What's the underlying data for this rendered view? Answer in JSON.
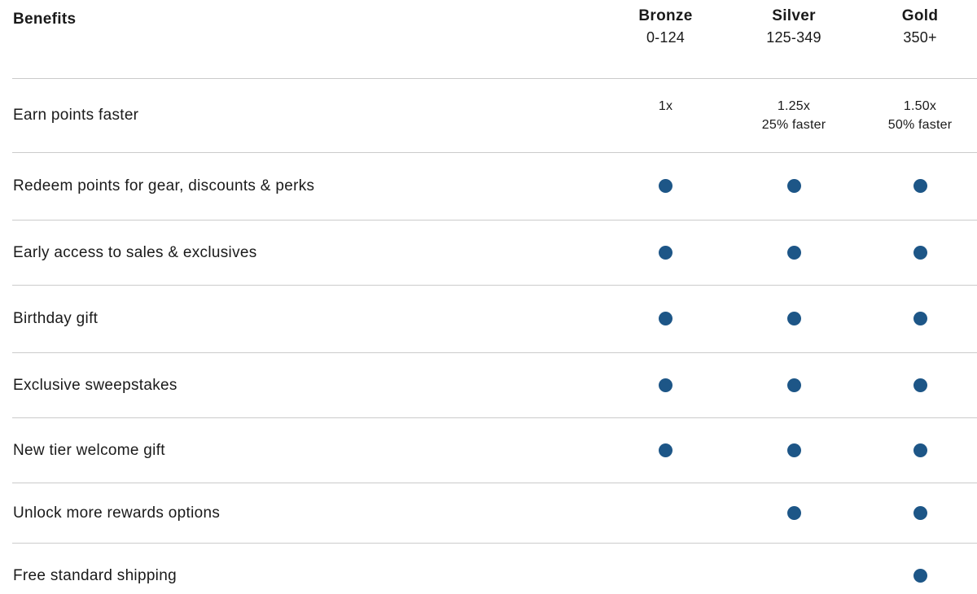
{
  "colors": {
    "accent": "#1d5687",
    "divider": "#cbcbcb",
    "text": "#1a1a1a"
  },
  "header": {
    "benefits_label": "Benefits",
    "tiers": [
      {
        "name": "Bronze",
        "range": "0-124"
      },
      {
        "name": "Silver",
        "range": "125-349"
      },
      {
        "name": "Gold",
        "range": "350+"
      }
    ]
  },
  "rows": [
    {
      "label": "Earn points faster",
      "cells": [
        {
          "main": "1x",
          "sub": ""
        },
        {
          "main": "1.25x",
          "sub": "25% faster"
        },
        {
          "main": "1.50x",
          "sub": "50% faster"
        }
      ]
    },
    {
      "label": "Redeem points for gear, discounts & perks",
      "cells": [
        "dot",
        "dot",
        "dot"
      ]
    },
    {
      "label": "Early access to sales & exclusives",
      "cells": [
        "dot",
        "dot",
        "dot"
      ]
    },
    {
      "label": "Birthday gift",
      "cells": [
        "dot",
        "dot",
        "dot"
      ]
    },
    {
      "label": "Exclusive sweepstakes",
      "cells": [
        "dot",
        "dot",
        "dot"
      ]
    },
    {
      "label": "New tier welcome gift",
      "cells": [
        "dot",
        "dot",
        "dot"
      ]
    },
    {
      "label": "Unlock more rewards options",
      "cells": [
        "",
        "dot",
        "dot"
      ]
    },
    {
      "label": "Free standard shipping",
      "cells": [
        "",
        "",
        "dot"
      ]
    }
  ]
}
